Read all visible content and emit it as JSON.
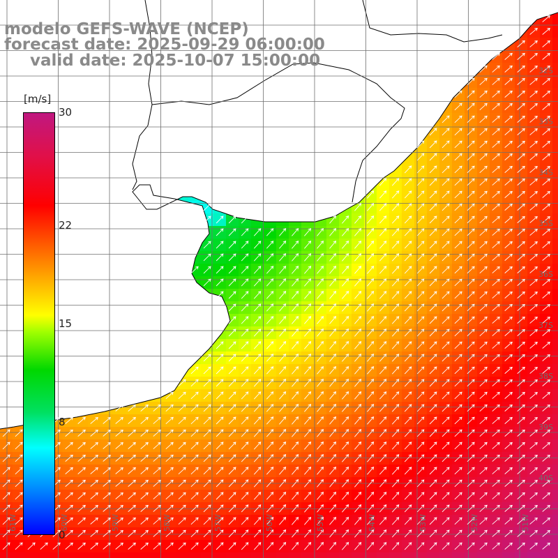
{
  "title": {
    "line1": "modelo GEFS-WAVE (NCEP)",
    "line2": "forecast date: 2025-09-29 06:00:00",
    "line3": "valid date: 2025-10-07 15:00:00"
  },
  "colorbar": {
    "unit": "[m/s]",
    "ticks": [
      {
        "label": "30",
        "value": 30
      },
      {
        "label": "22",
        "value": 22
      },
      {
        "label": "15",
        "value": 15
      },
      {
        "label": "8",
        "value": 8
      },
      {
        "label": "0",
        "value": 0
      }
    ],
    "range": [
      0,
      30
    ]
  },
  "map": {
    "lat_labels": [
      "32S",
      "33S",
      "34S",
      "35S",
      "36S",
      "37S",
      "38S",
      "39S",
      "40S"
    ],
    "lon_labels": [
      "61W",
      "60W",
      "59W",
      "58W",
      "57W",
      "56W",
      "55W",
      "54W",
      "53W",
      "52W",
      "51W"
    ],
    "field": "wind speed",
    "vector_direction": "towards north-east",
    "colors": {
      "land": "#ffffff",
      "coast": "#000000",
      "grid": "#6e6e6e",
      "arrow": "#ffffff"
    }
  }
}
